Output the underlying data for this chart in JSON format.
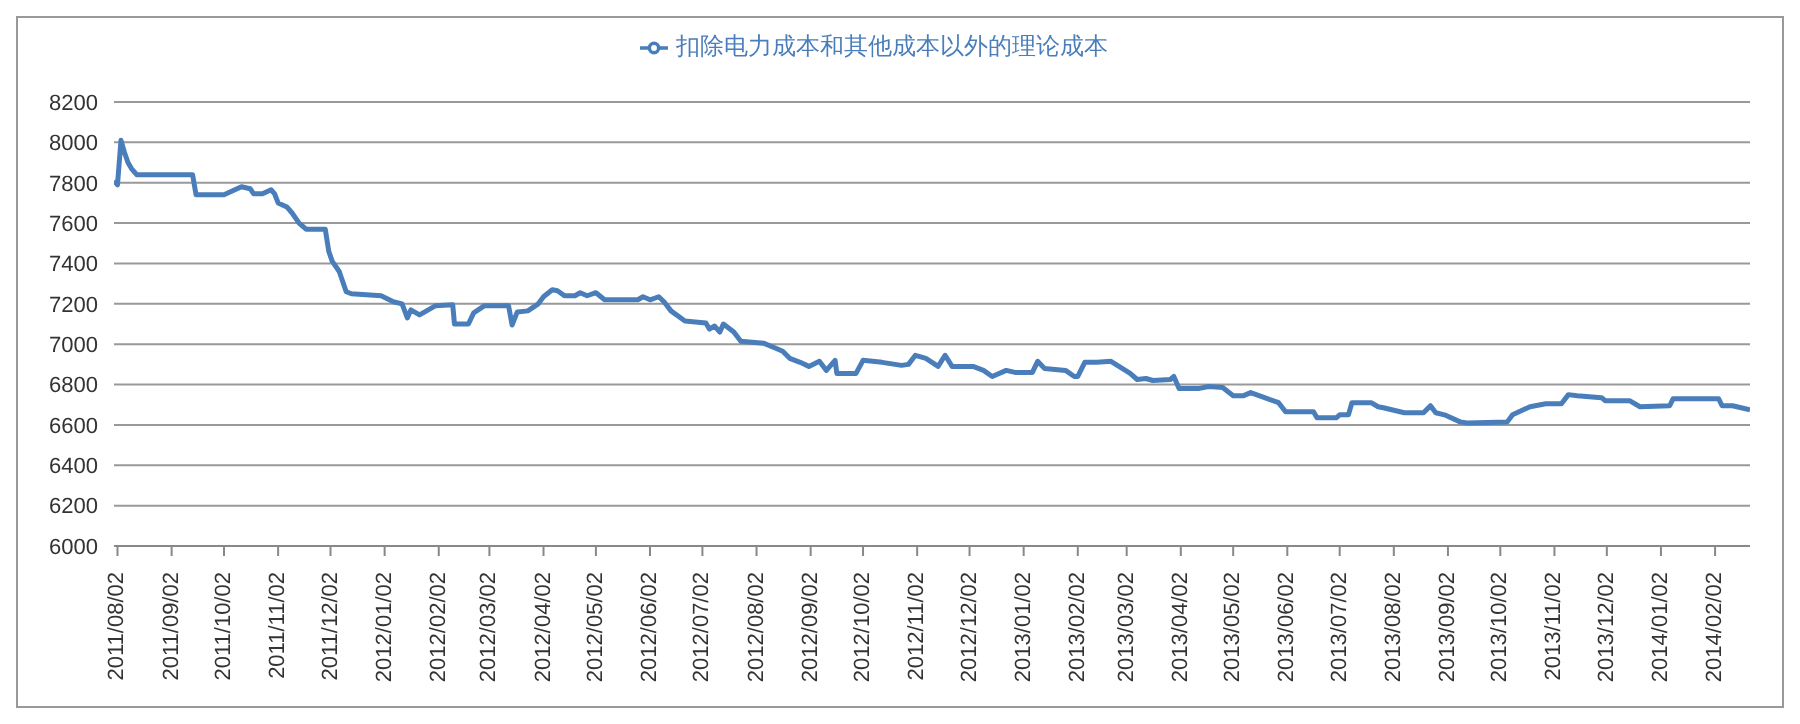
{
  "chart_data": {
    "type": "line",
    "x": [
      "2011-07-31",
      "2011-08-02",
      "2011-08-04",
      "2011-08-06",
      "2011-08-08",
      "2011-08-10",
      "2011-08-13",
      "2011-09-14",
      "2011-09-16",
      "2011-10-02",
      "2011-10-12",
      "2011-10-17",
      "2011-10-19",
      "2011-10-24",
      "2011-10-29",
      "2011-10-31",
      "2011-11-02",
      "2011-11-07",
      "2011-11-10",
      "2011-11-14",
      "2011-11-18",
      "2011-11-29",
      "2011-12-01",
      "2011-12-03",
      "2011-12-07",
      "2011-12-11",
      "2011-12-14",
      "2011-12-31",
      "2012-01-07",
      "2012-01-12",
      "2012-01-15",
      "2012-01-17",
      "2012-01-22",
      "2012-01-31",
      "2012-02-10",
      "2012-02-11",
      "2012-02-19",
      "2012-02-22",
      "2012-02-28",
      "2012-03-13",
      "2012-03-15",
      "2012-03-18",
      "2012-03-24",
      "2012-03-30",
      "2012-04-02",
      "2012-04-07",
      "2012-04-10",
      "2012-04-14",
      "2012-04-20",
      "2012-04-23",
      "2012-04-27",
      "2012-05-02",
      "2012-05-07",
      "2012-05-26",
      "2012-05-29",
      "2012-06-02",
      "2012-06-07",
      "2012-06-10",
      "2012-06-14",
      "2012-06-22",
      "2012-07-04",
      "2012-07-06",
      "2012-07-09",
      "2012-07-12",
      "2012-07-14",
      "2012-07-20",
      "2012-07-24",
      "2012-08-06",
      "2012-08-13",
      "2012-08-17",
      "2012-08-21",
      "2012-08-27",
      "2012-09-01",
      "2012-09-07",
      "2012-09-11",
      "2012-09-16",
      "2012-09-17",
      "2012-09-28",
      "2012-10-02",
      "2012-10-13",
      "2012-10-24",
      "2012-10-28",
      "2012-11-01",
      "2012-11-07",
      "2012-11-14",
      "2012-11-18",
      "2012-11-22",
      "2012-12-04",
      "2012-12-10",
      "2012-12-15",
      "2012-12-23",
      "2012-12-28",
      "2013-01-07",
      "2013-01-10",
      "2013-01-14",
      "2013-01-26",
      "2013-01-31",
      "2013-02-02",
      "2013-02-06",
      "2013-02-13",
      "2013-02-21",
      "2013-03-04",
      "2013-03-08",
      "2013-03-13",
      "2013-03-17",
      "2013-03-27",
      "2013-03-29",
      "2013-04-01",
      "2013-04-12",
      "2013-04-18",
      "2013-04-26",
      "2013-05-02",
      "2013-05-08",
      "2013-05-12",
      "2013-05-20",
      "2013-05-28",
      "2013-06-01",
      "2013-06-17",
      "2013-06-19",
      "2013-06-30",
      "2013-07-02",
      "2013-07-07",
      "2013-07-09",
      "2013-07-20",
      "2013-07-24",
      "2013-07-27",
      "2013-08-08",
      "2013-08-19",
      "2013-08-23",
      "2013-08-26",
      "2013-08-31",
      "2013-09-09",
      "2013-09-13",
      "2013-10-06",
      "2013-10-09",
      "2013-10-19",
      "2013-10-28",
      "2013-11-06",
      "2013-11-10",
      "2013-11-15",
      "2013-11-29",
      "2013-12-01",
      "2013-12-15",
      "2013-12-21",
      "2014-01-07",
      "2014-01-09",
      "2014-02-04",
      "2014-02-06",
      "2014-02-12",
      "2014-02-22"
    ],
    "series": [
      {
        "name": "扣除电力成本和其他成本以外的理论成本",
        "color": "#4a7ebb",
        "values": [
          7810,
          7790,
          8010,
          7950,
          7900,
          7870,
          7840,
          7840,
          7740,
          7740,
          7780,
          7770,
          7745,
          7745,
          7765,
          7745,
          7700,
          7680,
          7650,
          7600,
          7570,
          7570,
          7460,
          7410,
          7360,
          7260,
          7250,
          7240,
          7210,
          7200,
          7130,
          7170,
          7145,
          7190,
          7195,
          7100,
          7100,
          7155,
          7190,
          7190,
          7095,
          7160,
          7165,
          7200,
          7235,
          7270,
          7265,
          7240,
          7240,
          7255,
          7240,
          7255,
          7220,
          7220,
          7235,
          7220,
          7235,
          7210,
          7165,
          7115,
          7105,
          7075,
          7090,
          7060,
          7100,
          7060,
          7015,
          7005,
          6980,
          6965,
          6930,
          6910,
          6890,
          6915,
          6870,
          6920,
          6855,
          6855,
          6920,
          6910,
          6895,
          6900,
          6945,
          6930,
          6890,
          6945,
          6890,
          6890,
          6870,
          6840,
          6870,
          6860,
          6860,
          6915,
          6880,
          6870,
          6840,
          6840,
          6910,
          6910,
          6915,
          6855,
          6825,
          6830,
          6820,
          6825,
          6840,
          6780,
          6780,
          6790,
          6785,
          6745,
          6745,
          6760,
          6735,
          6710,
          6665,
          6665,
          6635,
          6635,
          6650,
          6650,
          6710,
          6710,
          6690,
          6685,
          6660,
          6660,
          6695,
          6660,
          6650,
          6615,
          6610,
          6615,
          6650,
          6690,
          6705,
          6705,
          6750,
          6745,
          6735,
          6720,
          6720,
          6690,
          6695,
          6730,
          6730,
          6695,
          6695,
          6675
        ]
      }
    ],
    "xlim": [
      "2011-07-31",
      "2014-02-22"
    ],
    "xticks": [
      {
        "value": "2011-08-02",
        "label": "2011/08/02"
      },
      {
        "value": "2011-09-02",
        "label": "2011/09/02"
      },
      {
        "value": "2011-10-02",
        "label": "2011/10/02"
      },
      {
        "value": "2011-11-02",
        "label": "2011/11/02"
      },
      {
        "value": "2011-12-02",
        "label": "2011/12/02"
      },
      {
        "value": "2012-01-02",
        "label": "2012/01/02"
      },
      {
        "value": "2012-02-02",
        "label": "2012/02/02"
      },
      {
        "value": "2012-03-02",
        "label": "2012/03/02"
      },
      {
        "value": "2012-04-02",
        "label": "2012/04/02"
      },
      {
        "value": "2012-05-02",
        "label": "2012/05/02"
      },
      {
        "value": "2012-06-02",
        "label": "2012/06/02"
      },
      {
        "value": "2012-07-02",
        "label": "2012/07/02"
      },
      {
        "value": "2012-08-02",
        "label": "2012/08/02"
      },
      {
        "value": "2012-09-02",
        "label": "2012/09/02"
      },
      {
        "value": "2012-10-02",
        "label": "2012/10/02"
      },
      {
        "value": "2012-11-02",
        "label": "2012/11/02"
      },
      {
        "value": "2012-12-02",
        "label": "2012/12/02"
      },
      {
        "value": "2013-01-02",
        "label": "2013/01/02"
      },
      {
        "value": "2013-02-02",
        "label": "2013/02/02"
      },
      {
        "value": "2013-03-02",
        "label": "2013/03/02"
      },
      {
        "value": "2013-04-02",
        "label": "2013/04/02"
      },
      {
        "value": "2013-05-02",
        "label": "2013/05/02"
      },
      {
        "value": "2013-06-02",
        "label": "2013/06/02"
      },
      {
        "value": "2013-07-02",
        "label": "2013/07/02"
      },
      {
        "value": "2013-08-02",
        "label": "2013/08/02"
      },
      {
        "value": "2013-09-02",
        "label": "2013/09/02"
      },
      {
        "value": "2013-10-02",
        "label": "2013/10/02"
      },
      {
        "value": "2013-11-02",
        "label": "2013/11/02"
      },
      {
        "value": "2013-12-02",
        "label": "2013/12/02"
      },
      {
        "value": "2014-01-02",
        "label": "2014/01/02"
      },
      {
        "value": "2014-02-02",
        "label": "2014/02/02"
      }
    ],
    "ylim": [
      6000,
      8200
    ],
    "yticks": [
      6000,
      6200,
      6400,
      6600,
      6800,
      7000,
      7200,
      7400,
      7600,
      7800,
      8000,
      8200
    ],
    "grid": "y",
    "legend": "top",
    "line_style": "solid"
  }
}
